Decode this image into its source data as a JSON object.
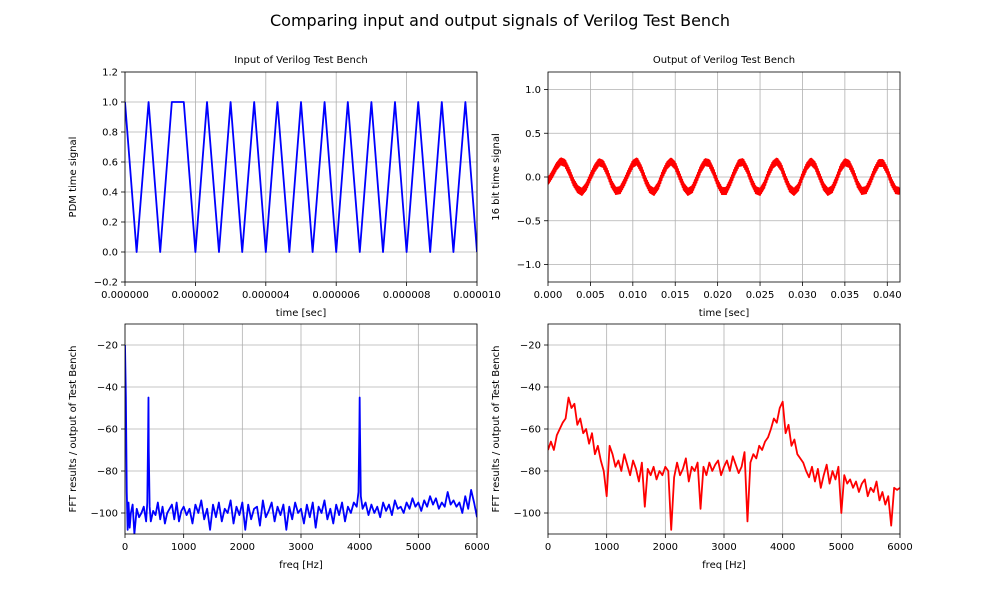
{
  "figure": {
    "title": "Comparing input and output signals of Verilog Test Bench"
  },
  "chart_data": [
    {
      "id": "input",
      "type": "line",
      "title": "Input of Verilog Test Bench",
      "xlabel": "time [sec]",
      "ylabel": "PDM time signal",
      "xlim": [
        0,
        1e-05
      ],
      "ylim": [
        -0.2,
        1.2
      ],
      "xticks": [
        "0.000000",
        "0.000002",
        "0.000004",
        "0.000006",
        "0.000008",
        "0.000010"
      ],
      "yticks": [
        "−0.2",
        "0.0",
        "0.2",
        "0.4",
        "0.6",
        "0.8",
        "1.0",
        "1.2"
      ],
      "grid": true,
      "color": "#0000ff",
      "series": [
        {
          "x": [
            0,
            3.3e-07,
            6.7e-07,
            1e-06,
            1.33e-06,
            1.45e-06,
            1.67e-06,
            2e-06,
            2.33e-06,
            2.67e-06,
            3e-06,
            3.33e-06,
            3.67e-06,
            4e-06,
            4.33e-06,
            4.67e-06,
            5e-06,
            5.33e-06,
            5.67e-06,
            6e-06,
            6.33e-06,
            6.67e-06,
            7e-06,
            7.33e-06,
            7.67e-06,
            8e-06,
            8.33e-06,
            8.67e-06,
            9e-06,
            9.33e-06,
            9.67e-06,
            1e-05
          ],
          "y": [
            1.0,
            0.0,
            1.0,
            0.0,
            1.0,
            1.0,
            1.0,
            0.0,
            1.0,
            0.0,
            1.0,
            0.0,
            1.0,
            0.0,
            1.0,
            0.0,
            1.0,
            0.0,
            1.0,
            0.0,
            1.0,
            0.0,
            1.0,
            0.0,
            1.0,
            0.0,
            1.0,
            0.0,
            1.0,
            0.0,
            1.0,
            0.0
          ]
        }
      ]
    },
    {
      "id": "output",
      "type": "line",
      "title": "Output of Verilog Test Bench",
      "xlabel": "time [sec]",
      "ylabel": "16 bit time signal",
      "xlim": [
        0,
        0.0415
      ],
      "ylim": [
        -1.2,
        1.2
      ],
      "xticks": [
        "0.000",
        "0.005",
        "0.010",
        "0.015",
        "0.020",
        "0.025",
        "0.030",
        "0.035",
        "0.040"
      ],
      "yticks": [
        "−1.0",
        "−0.5",
        "0.0",
        "0.5",
        "1.0"
      ],
      "grid": true,
      "color": "#ff0000",
      "series": [
        {
          "description": "approx. 0.15 amplitude 400 Hz sine with small 4 kHz ripple",
          "x": [
            0.0,
            0.0005,
            0.001,
            0.0015,
            0.002,
            0.0025,
            0.003,
            0.0035,
            0.004,
            0.0045,
            0.005,
            0.0055,
            0.006,
            0.0065,
            0.007,
            0.0075,
            0.008,
            0.0085,
            0.009,
            0.0095,
            0.01,
            0.0105,
            0.011,
            0.0115,
            0.012,
            0.0125,
            0.013,
            0.0135,
            0.014,
            0.0145,
            0.015,
            0.0155,
            0.016,
            0.0165,
            0.017,
            0.0175,
            0.018,
            0.0185,
            0.019,
            0.0195,
            0.02,
            0.0205,
            0.021,
            0.0215,
            0.022,
            0.0225,
            0.023,
            0.0235,
            0.024,
            0.0245,
            0.025,
            0.0255,
            0.026,
            0.0265,
            0.027,
            0.0275,
            0.028,
            0.0285,
            0.029,
            0.0295,
            0.03,
            0.0305,
            0.031,
            0.0315,
            0.032,
            0.0325,
            0.033,
            0.0335,
            0.034,
            0.0345,
            0.035,
            0.0355,
            0.036,
            0.0365,
            0.037,
            0.0375,
            0.038,
            0.0385,
            0.039,
            0.0395,
            0.04,
            0.0405,
            0.041,
            0.0415
          ],
          "y": [
            -0.05,
            0.03,
            0.12,
            0.18,
            0.16,
            0.06,
            -0.06,
            -0.14,
            -0.17,
            -0.11,
            0.0,
            0.1,
            0.17,
            0.15,
            0.05,
            -0.08,
            -0.16,
            -0.15,
            -0.06,
            0.05,
            0.15,
            0.18,
            0.09,
            -0.04,
            -0.14,
            -0.17,
            -0.1,
            0.03,
            0.13,
            0.18,
            0.13,
            0.01,
            -0.11,
            -0.17,
            -0.14,
            -0.03,
            0.09,
            0.17,
            0.16,
            0.06,
            -0.07,
            -0.16,
            -0.16,
            -0.06,
            0.06,
            0.16,
            0.17,
            0.08,
            -0.05,
            -0.15,
            -0.17,
            -0.09,
            0.04,
            0.14,
            0.18,
            0.11,
            -0.02,
            -0.13,
            -0.17,
            -0.12,
            0.01,
            0.12,
            0.18,
            0.13,
            0.01,
            -0.11,
            -0.17,
            -0.14,
            -0.03,
            0.1,
            0.17,
            0.15,
            0.05,
            -0.08,
            -0.16,
            -0.15,
            -0.05,
            0.07,
            0.16,
            0.16,
            0.07,
            -0.06,
            -0.15,
            -0.16
          ]
        }
      ]
    },
    {
      "id": "input-fft",
      "type": "line",
      "title": "",
      "xlabel": "freq [Hz]",
      "ylabel": "FFT results / output of Test Bench",
      "xlim": [
        0,
        6000
      ],
      "ylim": [
        -110,
        -10
      ],
      "xticks": [
        "0",
        "1000",
        "2000",
        "3000",
        "4000",
        "5000",
        "6000"
      ],
      "yticks": [
        "−100",
        "−80",
        "−60",
        "−40",
        "−20"
      ],
      "grid": true,
      "color": "#0000ff",
      "series": [
        {
          "x": [
            0,
            15,
            30,
            45,
            60,
            80,
            100,
            130,
            160,
            200,
            240,
            280,
            320,
            360,
            380,
            395,
            400,
            405,
            420,
            440,
            480,
            520,
            560,
            600,
            640,
            680,
            720,
            760,
            800,
            840,
            880,
            920,
            960,
            1000,
            1050,
            1100,
            1150,
            1200,
            1250,
            1300,
            1350,
            1400,
            1450,
            1500,
            1550,
            1600,
            1650,
            1700,
            1750,
            1800,
            1850,
            1900,
            1950,
            2000,
            2050,
            2100,
            2150,
            2200,
            2250,
            2300,
            2350,
            2400,
            2450,
            2500,
            2550,
            2600,
            2650,
            2700,
            2750,
            2800,
            2850,
            2900,
            2950,
            3000,
            3050,
            3100,
            3150,
            3200,
            3250,
            3300,
            3350,
            3400,
            3450,
            3500,
            3550,
            3600,
            3650,
            3700,
            3750,
            3800,
            3850,
            3900,
            3950,
            3980,
            3995,
            4000,
            4005,
            4020,
            4050,
            4100,
            4150,
            4200,
            4250,
            4300,
            4350,
            4400,
            4450,
            4500,
            4550,
            4600,
            4650,
            4700,
            4750,
            4800,
            4850,
            4900,
            4950,
            5000,
            5050,
            5100,
            5150,
            5200,
            5250,
            5300,
            5350,
            5400,
            5450,
            5500,
            5550,
            5600,
            5650,
            5700,
            5750,
            5800,
            5850,
            5900,
            5950,
            6000
          ],
          "y": [
            -20,
            -45,
            -90,
            -108,
            -95,
            -107,
            -100,
            -96,
            -110,
            -98,
            -102,
            -100,
            -97,
            -104,
            -95,
            -60,
            -45,
            -70,
            -97,
            -104,
            -99,
            -101,
            -95,
            -103,
            -97,
            -105,
            -100,
            -98,
            -96,
            -103,
            -95,
            -104,
            -99,
            -97,
            -101,
            -98,
            -105,
            -96,
            -100,
            -94,
            -103,
            -98,
            -108,
            -96,
            -102,
            -95,
            -104,
            -98,
            -100,
            -94,
            -105,
            -97,
            -101,
            -95,
            -108,
            -96,
            -103,
            -98,
            -97,
            -106,
            -94,
            -102,
            -99,
            -95,
            -104,
            -97,
            -101,
            -96,
            -108,
            -97,
            -103,
            -95,
            -100,
            -98,
            -105,
            -96,
            -102,
            -95,
            -107,
            -97,
            -100,
            -94,
            -103,
            -98,
            -105,
            -96,
            -101,
            -95,
            -104,
            -97,
            -100,
            -95,
            -97,
            -90,
            -60,
            -45,
            -60,
            -92,
            -98,
            -95,
            -101,
            -96,
            -100,
            -97,
            -102,
            -95,
            -99,
            -96,
            -101,
            -94,
            -98,
            -97,
            -100,
            -95,
            -98,
            -93,
            -97,
            -95,
            -99,
            -94,
            -97,
            -92,
            -96,
            -93,
            -98,
            -95,
            -97,
            -90,
            -96,
            -94,
            -97,
            -95,
            -100,
            -92,
            -98,
            -89,
            -95,
            -102
          ]
        }
      ]
    },
    {
      "id": "output-fft",
      "type": "line",
      "title": "",
      "xlabel": "freq [Hz]",
      "ylabel": "FFT results / output of Test Bench",
      "xlim": [
        0,
        6000
      ],
      "ylim": [
        -110,
        -10
      ],
      "xticks": [
        "0",
        "1000",
        "2000",
        "3000",
        "4000",
        "5000",
        "6000"
      ],
      "yticks": [
        "−100",
        "−80",
        "−60",
        "−40",
        "−20"
      ],
      "grid": true,
      "color": "#ff0000",
      "series": [
        {
          "x": [
            0,
            50,
            100,
            150,
            200,
            250,
            300,
            350,
            400,
            450,
            500,
            550,
            600,
            650,
            700,
            750,
            800,
            850,
            900,
            950,
            1000,
            1050,
            1100,
            1150,
            1200,
            1250,
            1300,
            1350,
            1400,
            1450,
            1500,
            1550,
            1600,
            1650,
            1700,
            1750,
            1800,
            1850,
            1900,
            1950,
            2000,
            2050,
            2100,
            2150,
            2200,
            2250,
            2300,
            2350,
            2400,
            2450,
            2500,
            2550,
            2600,
            2650,
            2700,
            2750,
            2800,
            2850,
            2900,
            2950,
            3000,
            3050,
            3100,
            3150,
            3200,
            3250,
            3300,
            3350,
            3400,
            3450,
            3500,
            3550,
            3600,
            3650,
            3700,
            3750,
            3800,
            3850,
            3900,
            3950,
            4000,
            4050,
            4100,
            4150,
            4200,
            4250,
            4300,
            4350,
            4400,
            4450,
            4500,
            4550,
            4600,
            4650,
            4700,
            4750,
            4800,
            4850,
            4900,
            4950,
            5000,
            5050,
            5100,
            5150,
            5200,
            5250,
            5300,
            5350,
            5400,
            5450,
            5500,
            5550,
            5600,
            5650,
            5700,
            5750,
            5800,
            5850,
            5900,
            5950,
            6000
          ],
          "y": [
            -70,
            -66,
            -70,
            -63,
            -60,
            -57,
            -55,
            -45,
            -50,
            -48,
            -58,
            -55,
            -62,
            -60,
            -67,
            -62,
            -72,
            -68,
            -75,
            -80,
            -92,
            -68,
            -72,
            -78,
            -75,
            -80,
            -72,
            -77,
            -82,
            -75,
            -79,
            -85,
            -76,
            -97,
            -79,
            -82,
            -78,
            -84,
            -80,
            -82,
            -78,
            -80,
            -108,
            -83,
            -76,
            -82,
            -79,
            -74,
            -85,
            -78,
            -80,
            -76,
            -98,
            -78,
            -82,
            -76,
            -80,
            -77,
            -75,
            -82,
            -78,
            -75,
            -80,
            -73,
            -77,
            -81,
            -78,
            -71,
            -104,
            -76,
            -72,
            -74,
            -68,
            -70,
            -66,
            -64,
            -60,
            -55,
            -57,
            -50,
            -47,
            -62,
            -58,
            -68,
            -65,
            -72,
            -74,
            -76,
            -80,
            -83,
            -78,
            -85,
            -79,
            -88,
            -82,
            -77,
            -86,
            -80,
            -84,
            -78,
            -100,
            -82,
            -86,
            -84,
            -88,
            -85,
            -90,
            -86,
            -84,
            -92,
            -88,
            -90,
            -85,
            -94,
            -90,
            -96,
            -92,
            -106,
            -88,
            -89,
            -88
          ]
        }
      ]
    }
  ]
}
